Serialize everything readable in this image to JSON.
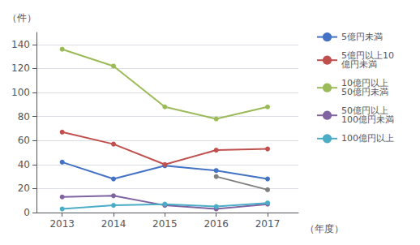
{
  "chart_data": {
    "type": "line",
    "x": [
      2013,
      2014,
      2015,
      2016,
      2017
    ],
    "series": [
      {
        "name": "5億円未満",
        "color": "#4472C4",
        "marker": "o",
        "values": [
          42,
          28,
          39,
          35,
          28
        ]
      },
      {
        "name": "5億円以上10\n億円未満",
        "color": "#C0504D",
        "marker": "o",
        "values": [
          67,
          57,
          40,
          52,
          53
        ]
      },
      {
        "name": "10億円以上\n50億円未満",
        "color": "#9BBB59",
        "marker": "o",
        "values": [
          136,
          122,
          88,
          78,
          88
        ]
      },
      {
        "name": "50億円以上\n100億円未満",
        "color": "#8064A2",
        "marker": "o",
        "values": [
          13,
          14,
          6,
          3,
          7
        ]
      },
      {
        "name": "100億円以上",
        "color": "#4BACC6",
        "marker": "o",
        "values": [
          3,
          6,
          7,
          5,
          8
        ]
      },
      {
        "color": "#808080",
        "marker": "o",
        "values": [
          null,
          null,
          null,
          30,
          19
        ]
      }
    ],
    "xlabel": "（年度）",
    "ylabel": "（件）",
    "xlim": [
      2012.5,
      2017.6
    ],
    "xticks": [
      2013,
      2014,
      2015,
      2016,
      2017
    ],
    "ylim": [
      0,
      150
    ],
    "yticks": [
      0,
      20,
      40,
      60,
      80,
      100,
      120,
      140
    ],
    "grid": true,
    "legend": "right"
  }
}
